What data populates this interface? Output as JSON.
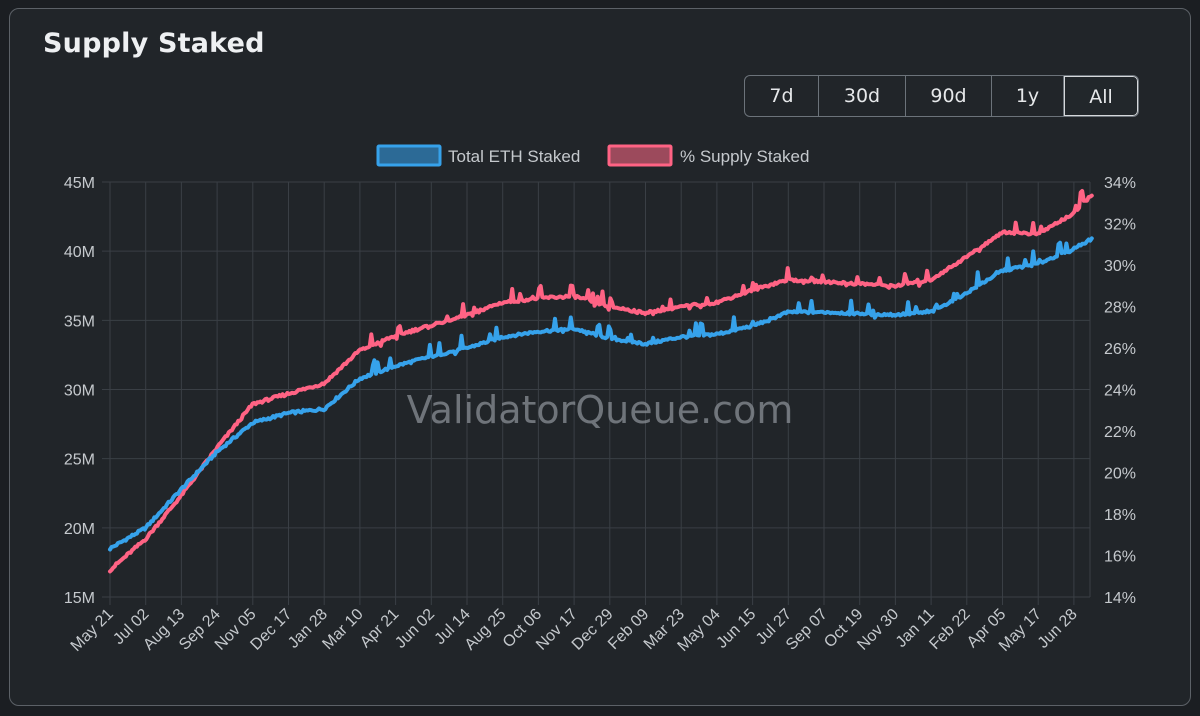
{
  "card": {
    "title": "Supply Staked"
  },
  "range_buttons": [
    {
      "label": "7d",
      "active": false
    },
    {
      "label": "30d",
      "active": false
    },
    {
      "label": "90d",
      "active": false
    },
    {
      "label": "1y",
      "active": false
    },
    {
      "label": "All",
      "active": true
    }
  ],
  "watermark": "ValidatorQueue.com",
  "colors": {
    "background": "#212529",
    "grid": "#3a3f45",
    "total_eth": "#36a2eb",
    "pct_supply": "#ff6384"
  },
  "chart_data": {
    "type": "line",
    "legend_position": "top-center",
    "grid": true,
    "x_tick_labels": [
      "May 21",
      "Jul 02",
      "Aug 13",
      "Sep 24",
      "Nov 05",
      "Dec 17",
      "Jan 28",
      "Mar 10",
      "Apr 21",
      "Jun 02",
      "Jul 14",
      "Aug 25",
      "Oct 06",
      "Nov 17",
      "Dec 29",
      "Feb 09",
      "Mar 23",
      "May 04",
      "Jun 15",
      "Jul 27",
      "Sep 07",
      "Oct 19",
      "Nov 30",
      "Jan 11",
      "Feb 22",
      "Apr 05",
      "May 17",
      "Jun 28"
    ],
    "y_left": {
      "ticks": [
        "15M",
        "20M",
        "25M",
        "30M",
        "35M",
        "40M",
        "45M"
      ],
      "range": [
        15,
        45
      ],
      "unit": "M"
    },
    "y_right": {
      "ticks": [
        "14%",
        "16%",
        "18%",
        "20%",
        "22%",
        "24%",
        "26%",
        "28%",
        "30%",
        "32%",
        "34%"
      ],
      "range": [
        14,
        34
      ],
      "unit": "%"
    },
    "series": [
      {
        "name": "Total ETH Staked",
        "axis": "left",
        "color": "#36a2eb",
        "x_index": [
          0,
          1,
          2,
          3,
          4,
          5,
          6,
          7,
          8,
          9,
          10,
          11,
          12,
          13,
          14,
          15,
          16,
          17,
          18,
          19,
          20,
          21,
          22,
          23,
          24,
          25,
          26,
          27,
          27.5
        ],
        "values": [
          18.5,
          20.0,
          22.8,
          25.5,
          27.6,
          28.3,
          28.6,
          30.8,
          31.7,
          32.4,
          33.0,
          33.8,
          34.2,
          34.4,
          33.7,
          33.3,
          33.8,
          34.0,
          34.6,
          35.6,
          35.6,
          35.5,
          35.4,
          35.6,
          37.0,
          38.6,
          39.1,
          40.2,
          40.9
        ]
      },
      {
        "name": "% Supply Staked",
        "axis": "right",
        "color": "#ff6384",
        "x_index": [
          0,
          1,
          2,
          3,
          4,
          5,
          6,
          7,
          8,
          9,
          10,
          11,
          12,
          13,
          14,
          15,
          16,
          17,
          18,
          19,
          20,
          21,
          22,
          23,
          24,
          25,
          26,
          27,
          27.5
        ],
        "values": [
          15.3,
          16.8,
          18.9,
          21.2,
          23.3,
          23.8,
          24.3,
          25.9,
          26.6,
          27.1,
          27.6,
          28.2,
          28.4,
          28.5,
          28.0,
          27.7,
          28.0,
          28.2,
          28.8,
          29.3,
          29.2,
          29.1,
          29.0,
          29.3,
          30.4,
          31.6,
          31.5,
          32.5,
          33.4
        ]
      }
    ]
  }
}
